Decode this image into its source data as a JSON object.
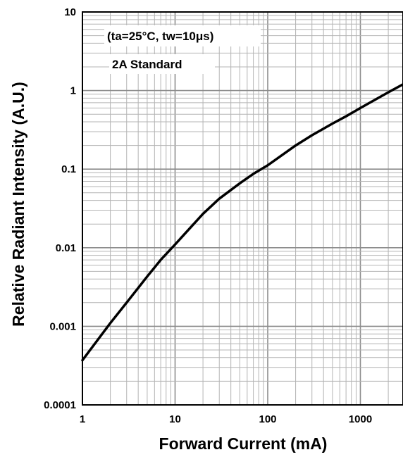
{
  "chart_data": {
    "type": "line",
    "xlabel": "Forward Current (mA)",
    "ylabel": "Relative Radiant Intensity (A.U.)",
    "x_scale": "log",
    "y_scale": "log",
    "xlim": [
      1,
      3000
    ],
    "ylim": [
      0.0001,
      10
    ],
    "x_ticks": [
      1,
      10,
      100,
      1000
    ],
    "x_tick_labels": [
      "1",
      "10",
      "100",
      "1000"
    ],
    "y_ticks": [
      0.0001,
      0.001,
      0.01,
      0.1,
      1,
      10
    ],
    "y_tick_labels": [
      "0.0001",
      "0.001",
      "0.01",
      "0.1",
      "1",
      "10"
    ],
    "grid": true,
    "annotations": [
      "(ta=25°C, tw=10μs)",
      "2A Standard"
    ],
    "series": [
      {
        "x": [
          1,
          2,
          3,
          5,
          7,
          10,
          20,
          30,
          50,
          70,
          100,
          200,
          300,
          500,
          700,
          1000,
          2000,
          3000
        ],
        "y": [
          0.00037,
          0.0011,
          0.002,
          0.0043,
          0.007,
          0.011,
          0.027,
          0.042,
          0.066,
          0.087,
          0.112,
          0.2,
          0.27,
          0.38,
          0.47,
          0.6,
          0.95,
          1.2
        ]
      }
    ],
    "colors": {
      "line": "#000000",
      "grid": "#b4b4b4",
      "frame": "#000000"
    }
  }
}
